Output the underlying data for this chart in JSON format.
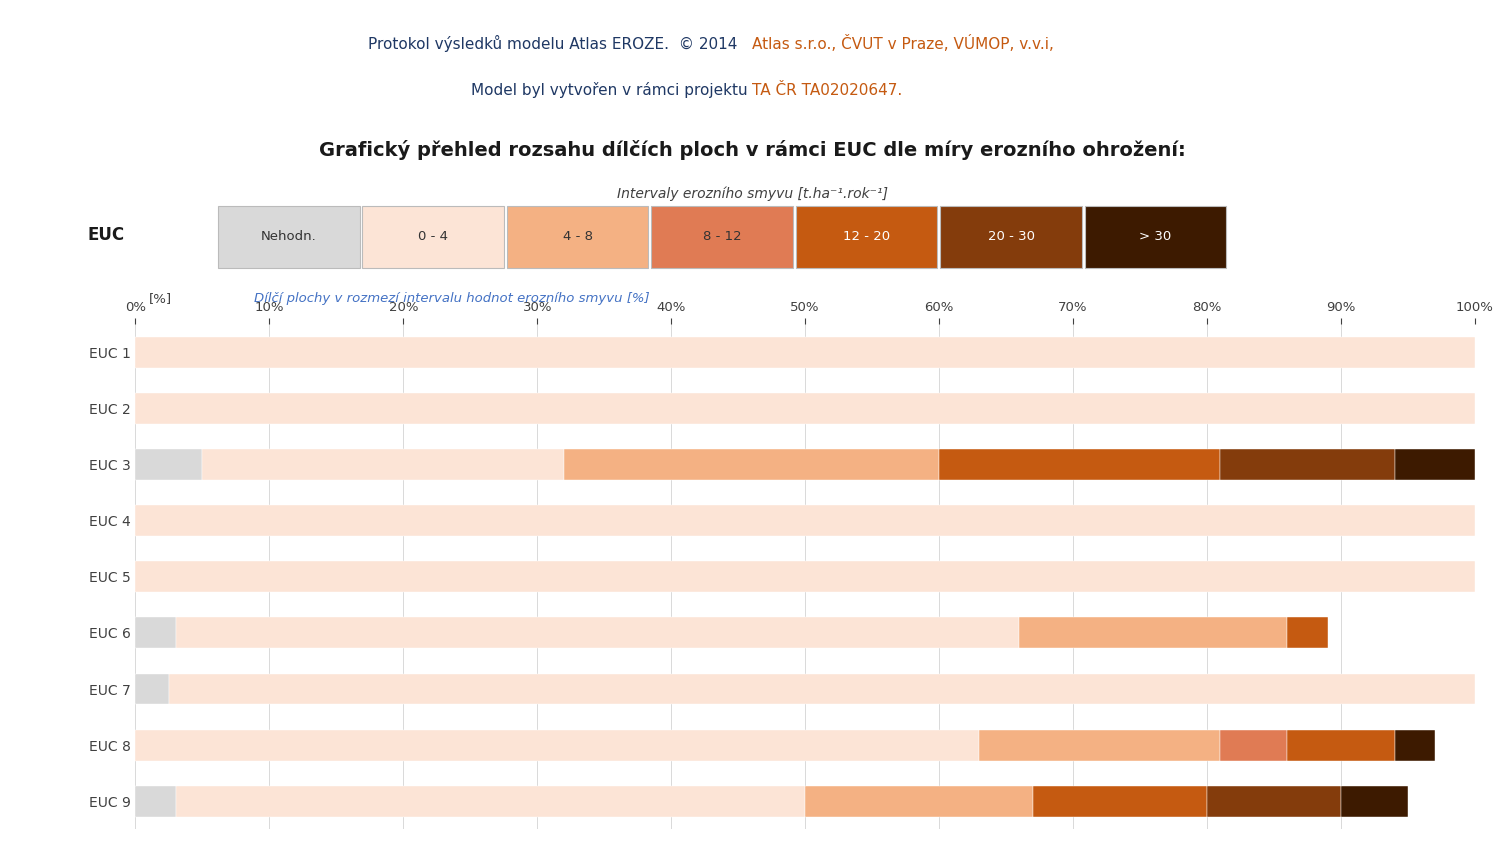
{
  "title_part1": "Protokol výsledků modelu Atlas EROZE.  © 2014   ",
  "title_part2": "Atlas s.r.o., ČVUT v Praze, VÚMOP, v.v.i,",
  "title2_part1": "Model byl vytvořen v rámci projektu ",
  "title2_part2": "TA ČR TA02020647.",
  "chart_title": "Grafický přehled rozsahu dílčích ploch v rámci EUC dle míry erozního ohrožení:",
  "legend_title": "Intervaly erozního smyvu [t.ha⁻¹.rok⁻¹]",
  "legend_labels": [
    "Nehodn.",
    "0 - 4",
    "4 - 8",
    "8 - 12",
    "12 - 20",
    "20 - 30",
    "> 30"
  ],
  "legend_colors": [
    "#d9d9d9",
    "#fce4d6",
    "#f4b183",
    "#e07b54",
    "#c55a11",
    "#843c0c",
    "#3d1a00"
  ],
  "axis_label_left": "EUC",
  "axis_label_pct": "[%]",
  "axis_desc": "Dílčí plochy v rozmezí intervalu hodnot erozního smyvu [%]",
  "categories": [
    "EUC 1",
    "EUC 2",
    "EUC 3",
    "EUC 4",
    "EUC 5",
    "EUC 6",
    "EUC 7",
    "EUC 8",
    "EUC 9"
  ],
  "data": [
    [
      0.0,
      100.0,
      0.0,
      0.0,
      0.0,
      0.0,
      0.0
    ],
    [
      0.0,
      100.0,
      0.0,
      0.0,
      0.0,
      0.0,
      0.0
    ],
    [
      5.0,
      27.0,
      28.0,
      0.0,
      21.0,
      13.0,
      6.0
    ],
    [
      0.0,
      100.0,
      0.0,
      0.0,
      0.0,
      0.0,
      0.0
    ],
    [
      0.0,
      100.0,
      0.0,
      0.0,
      0.0,
      0.0,
      0.0
    ],
    [
      3.0,
      63.0,
      20.0,
      0.0,
      3.0,
      0.0,
      0.0
    ],
    [
      2.5,
      97.5,
      0.0,
      0.0,
      0.0,
      0.0,
      0.0
    ],
    [
      0.0,
      63.0,
      18.0,
      5.0,
      8.0,
      0.0,
      3.0
    ],
    [
      3.0,
      47.0,
      17.0,
      0.0,
      13.0,
      10.0,
      5.0
    ]
  ],
  "colors": [
    "#d9d9d9",
    "#fce4d6",
    "#f4b183",
    "#e07b54",
    "#c55a11",
    "#843c0c",
    "#3d1a00"
  ],
  "background": "#ffffff",
  "header_dark": "#1f3864",
  "header_orange": "#c55a11",
  "axis_blue": "#4472c4",
  "grid_color": "#d9d9d9",
  "text_dark": "#404040"
}
